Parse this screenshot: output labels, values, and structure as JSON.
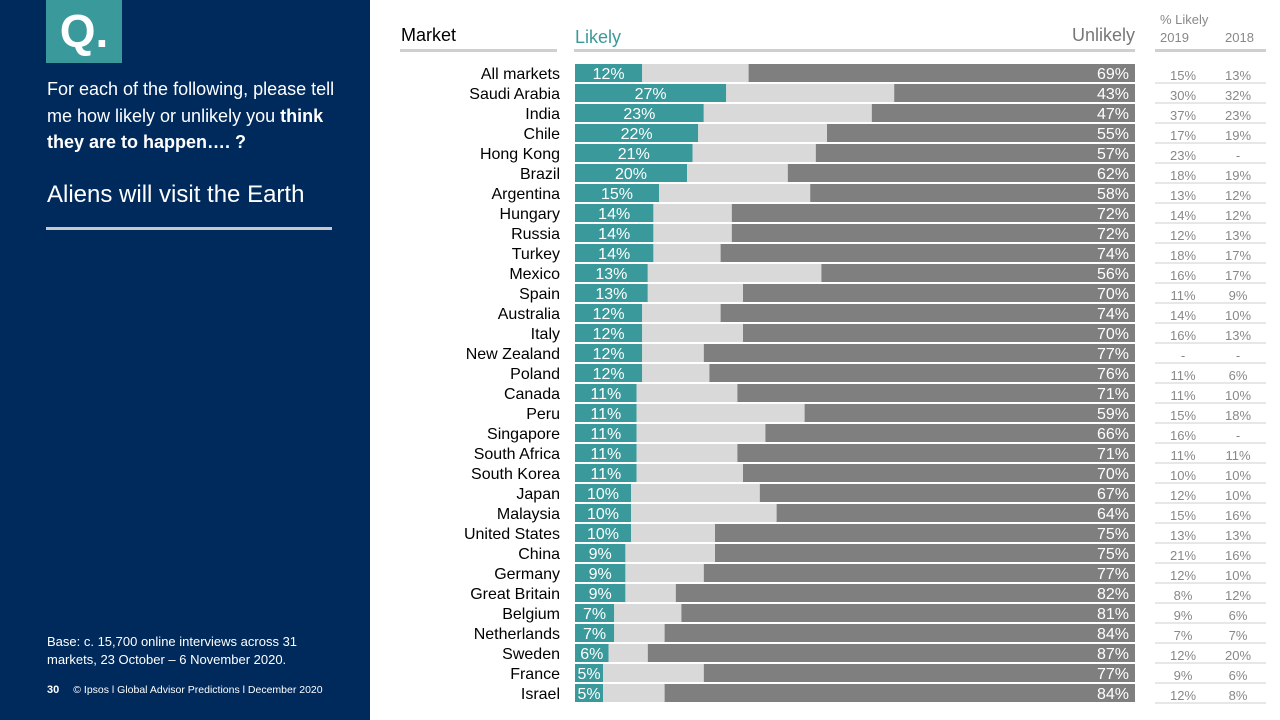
{
  "sidebar": {
    "badge": "Q.",
    "question_part1": "For each of the following, please tell me how likely or unlikely you ",
    "question_bold": "think they are to happen…. ?",
    "statement": "Aliens will visit the Earth",
    "base_note": "Base: c. 15,700 online interviews across 31 markets,  23 October – 6 November 2020.",
    "page_number": "30",
    "footer_text": "© Ipsos l Global Advisor Predictions l December 2020"
  },
  "headers": {
    "market": "Market",
    "likely": "Likely",
    "unlikely": "Unlikely",
    "pct_likely": "% Likely",
    "year_2019": "2019",
    "year_2018": "2018"
  },
  "colors": {
    "likely": "#3a9a9b",
    "neither": "#d9d9d9",
    "unlikely": "#7f7f7f",
    "sidebar": "#002a5c"
  },
  "chart_data": {
    "type": "bar",
    "orientation": "horizontal-stacked-100",
    "series": [
      {
        "name": "Likely",
        "values": [
          12,
          27,
          23,
          22,
          21,
          20,
          15,
          14,
          14,
          14,
          13,
          13,
          12,
          12,
          12,
          12,
          11,
          11,
          11,
          11,
          11,
          10,
          10,
          10,
          9,
          9,
          9,
          7,
          7,
          6,
          5,
          5
        ]
      },
      {
        "name": "Unlikely",
        "values": [
          69,
          43,
          47,
          55,
          57,
          62,
          58,
          72,
          72,
          74,
          56,
          70,
          74,
          70,
          77,
          76,
          71,
          59,
          66,
          71,
          70,
          67,
          64,
          75,
          75,
          77,
          82,
          81,
          84,
          87,
          77,
          84
        ]
      }
    ],
    "categories": [
      "All markets",
      "Saudi Arabia",
      "India",
      "Chile",
      "Hong Kong",
      "Brazil",
      "Argentina",
      "Hungary",
      "Russia",
      "Turkey",
      "Mexico",
      "Spain",
      "Australia",
      "Italy",
      "New Zealand",
      "Poland",
      "Canada",
      "Peru",
      "Singapore",
      "South Africa",
      "South Korea",
      "Japan",
      "Malaysia",
      "United States",
      "China",
      "Germany",
      "Great Britain",
      "Belgium",
      "Netherlands",
      "Sweden",
      "France",
      "Israel"
    ],
    "likely_2019": [
      "15%",
      "30%",
      "37%",
      "17%",
      "23%",
      "18%",
      "13%",
      "14%",
      "12%",
      "18%",
      "16%",
      "11%",
      "14%",
      "16%",
      "-",
      "11%",
      "11%",
      "15%",
      "16%",
      "11%",
      "10%",
      "12%",
      "15%",
      "13%",
      "21%",
      "12%",
      "8%",
      "9%",
      "7%",
      "12%",
      "9%",
      "12%"
    ],
    "likely_2018": [
      "13%",
      "32%",
      "23%",
      "19%",
      "-",
      "19%",
      "12%",
      "12%",
      "13%",
      "17%",
      "17%",
      "9%",
      "10%",
      "13%",
      "-",
      "6%",
      "10%",
      "18%",
      "-",
      "11%",
      "10%",
      "10%",
      "16%",
      "13%",
      "16%",
      "10%",
      "12%",
      "6%",
      "7%",
      "20%",
      "6%",
      "8%"
    ],
    "xlim": [
      0,
      100
    ]
  }
}
